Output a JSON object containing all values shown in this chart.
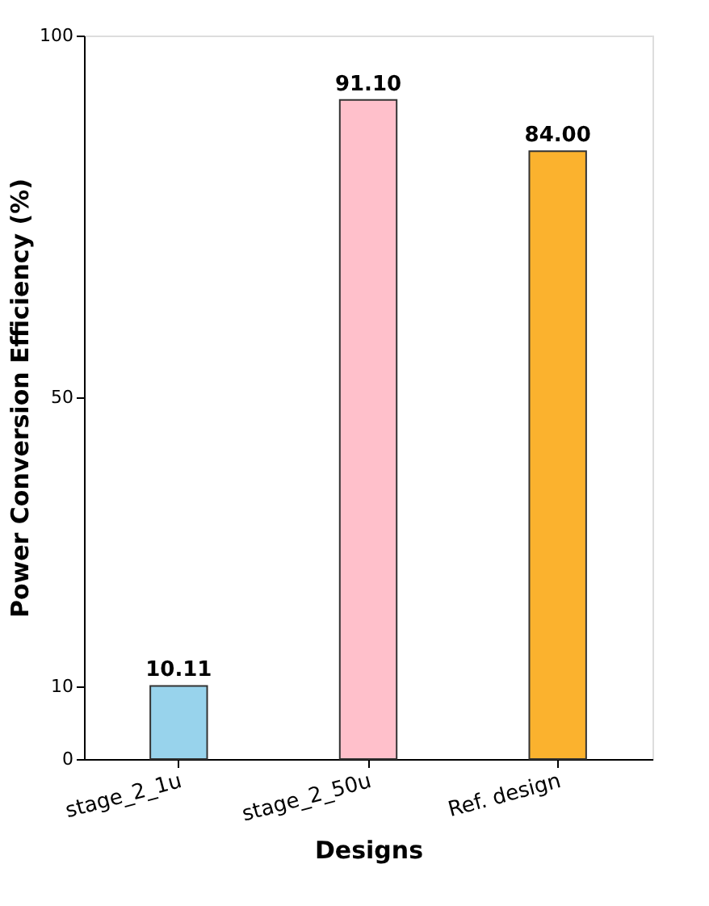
{
  "chart_data": {
    "type": "bar",
    "xlabel": "Designs",
    "ylabel": "Power Conversion Efficiency (%)",
    "categories": [
      "stage_2_1u",
      "stage_2_50u",
      "Ref. design"
    ],
    "values": [
      10.11,
      91.1,
      84.0
    ],
    "value_labels": [
      "10.11",
      "91.10",
      "84.00"
    ],
    "colors": [
      "#98d3ec",
      "#ffc0cb",
      "#fbb22e"
    ],
    "ylim": [
      0,
      100
    ],
    "yticks": [
      0,
      10,
      50,
      100
    ],
    "grid": false
  }
}
